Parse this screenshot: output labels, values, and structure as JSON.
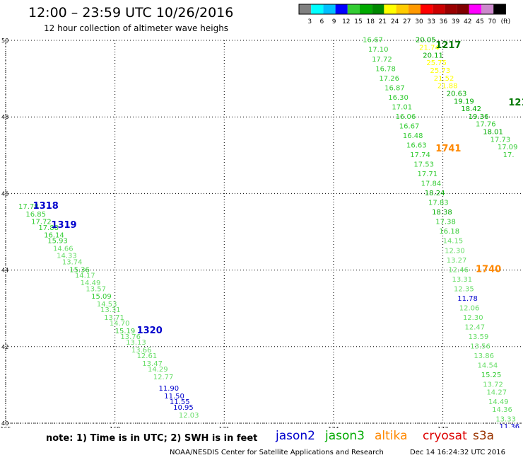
{
  "header": {
    "title": "12:00 – 23:59 UTC 10/26/2016",
    "subtitle": "12 hour collection of altimeter wave heighs"
  },
  "colorbar": {
    "swatches": [
      "#808080",
      "#00ffff",
      "#00bfff",
      "#0000ff",
      "#33cc33",
      "#00aa00",
      "#008800",
      "#ffff00",
      "#ffcc00",
      "#ff9900",
      "#ff0000",
      "#cc0000",
      "#990000",
      "#800000",
      "#ff00ff",
      "#cc88cc",
      "#000000"
    ],
    "labels": [
      "3",
      "6",
      "9",
      "12",
      "15",
      "18",
      "21",
      "24",
      "27",
      "30",
      "33",
      "36",
      "39",
      "42",
      "45",
      "70",
      "(ft)"
    ]
  },
  "map": {
    "lon_ticks": [
      "165",
      "168",
      "171",
      "174",
      "177"
    ],
    "lat_ticks": [
      "50",
      "48",
      "46",
      "44",
      "42",
      "40"
    ]
  },
  "chart_data": {
    "type": "scatter",
    "title": "12:00 – 23:59 UTC 10/26/2016",
    "subtitle": "12 hour collection of altimeter wave heighs",
    "xlabel": "",
    "ylabel": "",
    "xlim": [
      165,
      179.2
    ],
    "ylim": [
      40,
      50
    ],
    "grid": true,
    "units": "ft",
    "track_labels": [
      {
        "text": "1217",
        "lon": 176.8,
        "lat": 49.8,
        "color": "#007700"
      },
      {
        "text": "121",
        "lon": 178.8,
        "lat": 48.3,
        "color": "#007700"
      },
      {
        "text": "1741",
        "lon": 176.8,
        "lat": 47.1,
        "color": "#ff8800"
      },
      {
        "text": "1318",
        "lon": 165.75,
        "lat": 45.6,
        "color": "#0000cc"
      },
      {
        "text": "1319",
        "lon": 166.25,
        "lat": 45.1,
        "color": "#0000cc"
      },
      {
        "text": "1740",
        "lon": 177.9,
        "lat": 43.95,
        "color": "#ff8800"
      },
      {
        "text": "1320",
        "lon": 168.6,
        "lat": 42.35,
        "color": "#0000cc"
      }
    ],
    "series": [
      {
        "name": "jason2",
        "color": "#0000cc",
        "points": [
          {
            "lon": 165.35,
            "lat": 45.6,
            "swh": "17.78",
            "color": "#33cc33"
          },
          {
            "lon": 165.55,
            "lat": 45.4,
            "swh": "16.85",
            "color": "#33cc33"
          },
          {
            "lon": 165.7,
            "lat": 45.2,
            "swh": "17.72",
            "color": "#33cc33"
          },
          {
            "lon": 165.9,
            "lat": 45.05,
            "swh": "17.88",
            "color": "#33cc33"
          },
          {
            "lon": 166.05,
            "lat": 44.85,
            "swh": "16.14",
            "color": "#33cc33"
          },
          {
            "lon": 166.15,
            "lat": 44.7,
            "swh": "15.93",
            "color": "#33cc33"
          },
          {
            "lon": 166.3,
            "lat": 44.5,
            "swh": "14.66",
            "color": "#66dd66"
          },
          {
            "lon": 166.4,
            "lat": 44.32,
            "swh": "14.33",
            "color": "#66dd66"
          },
          {
            "lon": 166.55,
            "lat": 44.15,
            "swh": "13.74",
            "color": "#66dd66"
          },
          {
            "lon": 166.75,
            "lat": 43.95,
            "swh": "15.36",
            "color": "#33cc33"
          },
          {
            "lon": 166.9,
            "lat": 43.8,
            "swh": "14.17",
            "color": "#66dd66"
          },
          {
            "lon": 167.05,
            "lat": 43.6,
            "swh": "14.49",
            "color": "#66dd66"
          },
          {
            "lon": 167.2,
            "lat": 43.45,
            "swh": "13.57",
            "color": "#66dd66"
          },
          {
            "lon": 167.35,
            "lat": 43.25,
            "swh": "15.09",
            "color": "#33cc33"
          },
          {
            "lon": 167.5,
            "lat": 43.05,
            "swh": "14.53",
            "color": "#66dd66"
          },
          {
            "lon": 167.6,
            "lat": 42.9,
            "swh": "13.31",
            "color": "#66dd66"
          },
          {
            "lon": 167.7,
            "lat": 42.7,
            "swh": "13.71",
            "color": "#66dd66"
          },
          {
            "lon": 167.85,
            "lat": 42.55,
            "swh": "14.70",
            "color": "#66dd66"
          },
          {
            "lon": 168.0,
            "lat": 42.35,
            "swh": "15.19",
            "color": "#33cc33"
          },
          {
            "lon": 168.15,
            "lat": 42.2,
            "swh": "13.76",
            "color": "#66dd66"
          },
          {
            "lon": 168.3,
            "lat": 42.05,
            "swh": "13.13",
            "color": "#66dd66"
          },
          {
            "lon": 168.45,
            "lat": 41.85,
            "swh": "13.66",
            "color": "#66dd66"
          },
          {
            "lon": 168.6,
            "lat": 41.7,
            "swh": "12.61",
            "color": "#66dd66"
          },
          {
            "lon": 168.75,
            "lat": 41.5,
            "swh": "13.47",
            "color": "#66dd66"
          },
          {
            "lon": 168.9,
            "lat": 41.35,
            "swh": "14.29",
            "color": "#66dd66"
          },
          {
            "lon": 169.05,
            "lat": 41.15,
            "swh": "12.77",
            "color": "#66dd66"
          },
          {
            "lon": 169.2,
            "lat": 40.85,
            "swh": "11.90",
            "color": "#0000cc"
          },
          {
            "lon": 169.35,
            "lat": 40.65,
            "swh": "11.50",
            "color": "#0000cc"
          },
          {
            "lon": 169.5,
            "lat": 40.5,
            "swh": "11.55",
            "color": "#0000cc"
          },
          {
            "lon": 169.6,
            "lat": 40.35,
            "swh": "10.95",
            "color": "#0000cc"
          },
          {
            "lon": 169.75,
            "lat": 40.15,
            "swh": "12.03",
            "color": "#66dd66"
          }
        ]
      },
      {
        "name": "jason3",
        "color": "#00aa00",
        "points": [
          {
            "lon": 174.8,
            "lat": 49.95,
            "swh": "16.67",
            "color": "#33cc33"
          },
          {
            "lon": 174.95,
            "lat": 49.7,
            "swh": "17.10",
            "color": "#33cc33"
          },
          {
            "lon": 175.05,
            "lat": 49.45,
            "swh": "17.72",
            "color": "#33cc33"
          },
          {
            "lon": 175.15,
            "lat": 49.2,
            "swh": "16.78",
            "color": "#33cc33"
          },
          {
            "lon": 175.25,
            "lat": 48.95,
            "swh": "17.26",
            "color": "#33cc33"
          },
          {
            "lon": 175.4,
            "lat": 48.7,
            "swh": "16.87",
            "color": "#33cc33"
          },
          {
            "lon": 175.5,
            "lat": 48.45,
            "swh": "16.30",
            "color": "#33cc33"
          },
          {
            "lon": 175.6,
            "lat": 48.2,
            "swh": "17.01",
            "color": "#33cc33"
          },
          {
            "lon": 175.7,
            "lat": 47.95,
            "swh": "16.06",
            "color": "#33cc33"
          },
          {
            "lon": 175.8,
            "lat": 47.7,
            "swh": "16.67",
            "color": "#33cc33"
          },
          {
            "lon": 175.9,
            "lat": 47.45,
            "swh": "16.48",
            "color": "#33cc33"
          },
          {
            "lon": 176.0,
            "lat": 47.2,
            "swh": "16.63",
            "color": "#33cc33"
          },
          {
            "lon": 176.1,
            "lat": 46.95,
            "swh": "17.74",
            "color": "#33cc33"
          },
          {
            "lon": 176.2,
            "lat": 46.7,
            "swh": "17.53",
            "color": "#33cc33"
          },
          {
            "lon": 176.3,
            "lat": 46.45,
            "swh": "17.71",
            "color": "#33cc33"
          },
          {
            "lon": 176.4,
            "lat": 46.2,
            "swh": "17.84",
            "color": "#33cc33"
          },
          {
            "lon": 176.5,
            "lat": 45.95,
            "swh": "18.24",
            "color": "#00aa00"
          },
          {
            "lon": 176.6,
            "lat": 45.7,
            "swh": "17.83",
            "color": "#33cc33"
          },
          {
            "lon": 176.7,
            "lat": 45.45,
            "swh": "18.38",
            "color": "#00aa00"
          },
          {
            "lon": 176.8,
            "lat": 45.2,
            "swh": "17.38",
            "color": "#33cc33"
          },
          {
            "lon": 176.9,
            "lat": 44.95,
            "swh": "16.18",
            "color": "#33cc33"
          },
          {
            "lon": 177.0,
            "lat": 44.7,
            "swh": "14.15",
            "color": "#66dd66"
          },
          {
            "lon": 177.05,
            "lat": 44.45,
            "swh": "12.30",
            "color": "#66dd66"
          },
          {
            "lon": 177.1,
            "lat": 44.2,
            "swh": "13.27",
            "color": "#66dd66"
          },
          {
            "lon": 177.15,
            "lat": 43.95,
            "swh": "12.46",
            "color": "#66dd66"
          },
          {
            "lon": 177.25,
            "lat": 43.7,
            "swh": "13.31",
            "color": "#66dd66"
          },
          {
            "lon": 177.3,
            "lat": 43.45,
            "swh": "12.35",
            "color": "#66dd66"
          },
          {
            "lon": 177.4,
            "lat": 43.2,
            "swh": "11.78",
            "color": "#0000cc"
          },
          {
            "lon": 177.45,
            "lat": 42.95,
            "swh": "12.06",
            "color": "#66dd66"
          },
          {
            "lon": 177.55,
            "lat": 42.7,
            "swh": "12.30",
            "color": "#66dd66"
          },
          {
            "lon": 177.6,
            "lat": 42.45,
            "swh": "12.47",
            "color": "#66dd66"
          },
          {
            "lon": 177.7,
            "lat": 42.2,
            "swh": "13.59",
            "color": "#66dd66"
          },
          {
            "lon": 177.75,
            "lat": 41.95,
            "swh": "13.56",
            "color": "#66dd66"
          },
          {
            "lon": 177.85,
            "lat": 41.7,
            "swh": "13.86",
            "color": "#66dd66"
          },
          {
            "lon": 177.95,
            "lat": 41.45,
            "swh": "14.54",
            "color": "#66dd66"
          },
          {
            "lon": 178.05,
            "lat": 41.2,
            "swh": "15.25",
            "color": "#33cc33"
          },
          {
            "lon": 178.1,
            "lat": 40.95,
            "swh": "13.72",
            "color": "#66dd66"
          },
          {
            "lon": 178.2,
            "lat": 40.75,
            "swh": "14.27",
            "color": "#66dd66"
          },
          {
            "lon": 178.25,
            "lat": 40.5,
            "swh": "14.49",
            "color": "#66dd66"
          },
          {
            "lon": 178.35,
            "lat": 40.3,
            "swh": "14.36",
            "color": "#66dd66"
          },
          {
            "lon": 178.45,
            "lat": 40.05,
            "swh": "13.33",
            "color": "#66dd66"
          },
          {
            "lon": 178.55,
            "lat": 39.85,
            "swh": "11.36",
            "color": "#0000cc"
          }
        ]
      },
      {
        "name": "altika",
        "color": "#ff8800",
        "points": [
          {
            "lon": 176.25,
            "lat": 49.95,
            "swh": "20.05",
            "color": "#00aa00"
          },
          {
            "lon": 176.35,
            "lat": 49.75,
            "swh": "21.74",
            "color": "#ffff00"
          },
          {
            "lon": 176.45,
            "lat": 49.55,
            "swh": "20.11",
            "color": "#00aa00"
          },
          {
            "lon": 176.55,
            "lat": 49.35,
            "swh": "25.75",
            "color": "#ffff00"
          },
          {
            "lon": 176.65,
            "lat": 49.15,
            "swh": "25.73",
            "color": "#ffff00"
          },
          {
            "lon": 176.75,
            "lat": 48.95,
            "swh": "21.52",
            "color": "#ffff00"
          },
          {
            "lon": 176.85,
            "lat": 48.75,
            "swh": "21.88",
            "color": "#ffff00"
          },
          {
            "lon": 177.1,
            "lat": 48.55,
            "swh": "20.63",
            "color": "#00aa00"
          },
          {
            "lon": 177.3,
            "lat": 48.35,
            "swh": "19.19",
            "color": "#00aa00"
          },
          {
            "lon": 177.5,
            "lat": 48.15,
            "swh": "18.42",
            "color": "#00aa00"
          },
          {
            "lon": 177.7,
            "lat": 47.95,
            "swh": "19.36",
            "color": "#00aa00"
          },
          {
            "lon": 177.9,
            "lat": 47.75,
            "swh": "17.76",
            "color": "#33cc33"
          },
          {
            "lon": 178.1,
            "lat": 47.55,
            "swh": "18.01",
            "color": "#00aa00"
          },
          {
            "lon": 178.3,
            "lat": 47.35,
            "swh": "17.73",
            "color": "#33cc33"
          },
          {
            "lon": 178.5,
            "lat": 47.15,
            "swh": "17.09",
            "color": "#33cc33"
          },
          {
            "lon": 178.65,
            "lat": 46.95,
            "swh": "17.",
            "color": "#33cc33"
          }
        ]
      }
    ]
  },
  "legend": {
    "note": "note:  1) Time is in UTC;  2) SWH is in feet",
    "satellites": [
      {
        "name": "jason2",
        "color": "#0000cc"
      },
      {
        "name": "jason3",
        "color": "#00aa00"
      },
      {
        "name": "altika",
        "color": "#ff8800"
      },
      {
        "name": "cryosat",
        "color": "#dd0000"
      },
      {
        "name": "s3a",
        "color": "#993300"
      }
    ]
  },
  "footer": {
    "credit": "NOAA/NESDIS Center for Satellite Applications and Research",
    "timestamp": "Dec 14 16:24:32 UTC 2016"
  }
}
